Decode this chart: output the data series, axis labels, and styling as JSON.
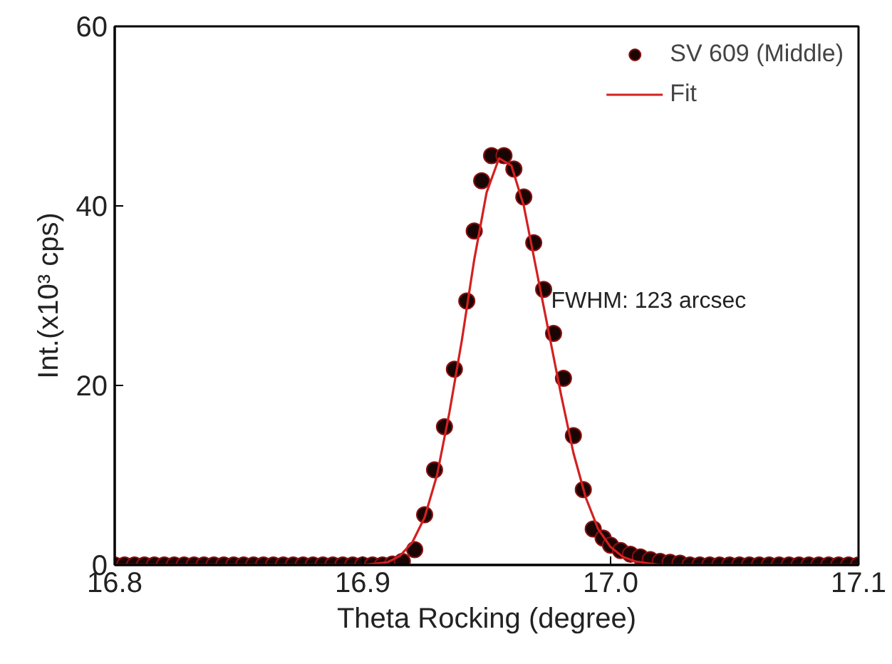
{
  "chart_data": {
    "type": "scatter",
    "xlabel": "Theta Rocking (degree)",
    "ylabel": "Int.(x10³ cps)",
    "xlim": [
      16.8,
      17.1
    ],
    "xticks": [
      {
        "value": 16.8,
        "label": "16.8"
      },
      {
        "value": 16.9,
        "label": "16.9"
      },
      {
        "value": 17.0,
        "label": "17.0"
      },
      {
        "value": 17.1,
        "label": "17.1"
      }
    ],
    "ylim": [
      0,
      60
    ],
    "yticks": [
      0,
      20,
      40,
      60
    ],
    "grid": false,
    "legend": "top right",
    "annotations": [
      "FWHM: 123 arcsec"
    ],
    "series": [
      {
        "name": "SV 609 (Middle)",
        "marker": "circle",
        "color": "#1a0505",
        "x": [
          16.8,
          16.804,
          16.808,
          16.812,
          16.816,
          16.82,
          16.824,
          16.828,
          16.832,
          16.836,
          16.84,
          16.844,
          16.848,
          16.852,
          16.856,
          16.86,
          16.864,
          16.868,
          16.872,
          16.876,
          16.88,
          16.884,
          16.888,
          16.892,
          16.896,
          16.9,
          16.904,
          16.908,
          16.912,
          16.916,
          16.921,
          16.925,
          16.929,
          16.933,
          16.937,
          16.942,
          16.945,
          16.948,
          16.952,
          16.957,
          16.961,
          16.965,
          16.969,
          16.973,
          16.977,
          16.981,
          16.985,
          16.989,
          16.993,
          16.997,
          17.0,
          17.004,
          17.008,
          17.012,
          17.016,
          17.02,
          17.024,
          17.028,
          17.032,
          17.036,
          17.04,
          17.044,
          17.048,
          17.052,
          17.056,
          17.06,
          17.064,
          17.068,
          17.072,
          17.076,
          17.08,
          17.084,
          17.088,
          17.092,
          17.096,
          17.1
        ],
        "values": [
          0,
          0,
          0,
          0,
          0,
          0,
          0,
          0,
          0,
          0,
          0,
          0,
          0,
          0,
          0,
          0,
          0,
          0,
          0,
          0,
          0,
          0,
          0,
          0,
          0,
          0,
          0,
          0,
          0.1,
          0.4,
          1.7,
          5.6,
          10.6,
          15.4,
          21.8,
          29.4,
          37.2,
          42.8,
          45.6,
          45.6,
          44.1,
          41.0,
          35.9,
          30.7,
          25.8,
          20.8,
          14.4,
          8.4,
          4.0,
          3.0,
          2.2,
          1.6,
          1.2,
          0.9,
          0.6,
          0.4,
          0.3,
          0.2,
          0,
          0,
          0,
          0,
          0,
          0,
          0,
          0,
          0,
          0,
          0,
          0,
          0,
          0,
          0,
          0,
          0,
          0
        ]
      },
      {
        "name": "Fit",
        "type": "line",
        "line_style": "solid",
        "color": "#d42020",
        "x": [
          16.8,
          16.9,
          16.91,
          16.915,
          16.92,
          16.925,
          16.93,
          16.935,
          16.94,
          16.945,
          16.95,
          16.955,
          16.96,
          16.965,
          16.97,
          16.975,
          16.98,
          16.985,
          16.99,
          16.995,
          17.0,
          17.005,
          17.01,
          17.02,
          17.1
        ],
        "values": [
          0,
          0,
          0.3,
          1,
          2.5,
          5.3,
          10,
          17,
          25,
          34,
          41.5,
          45.3,
          44.5,
          40,
          33,
          26,
          19,
          12.5,
          7.5,
          4,
          2,
          0.9,
          0.4,
          0,
          0
        ]
      }
    ]
  }
}
